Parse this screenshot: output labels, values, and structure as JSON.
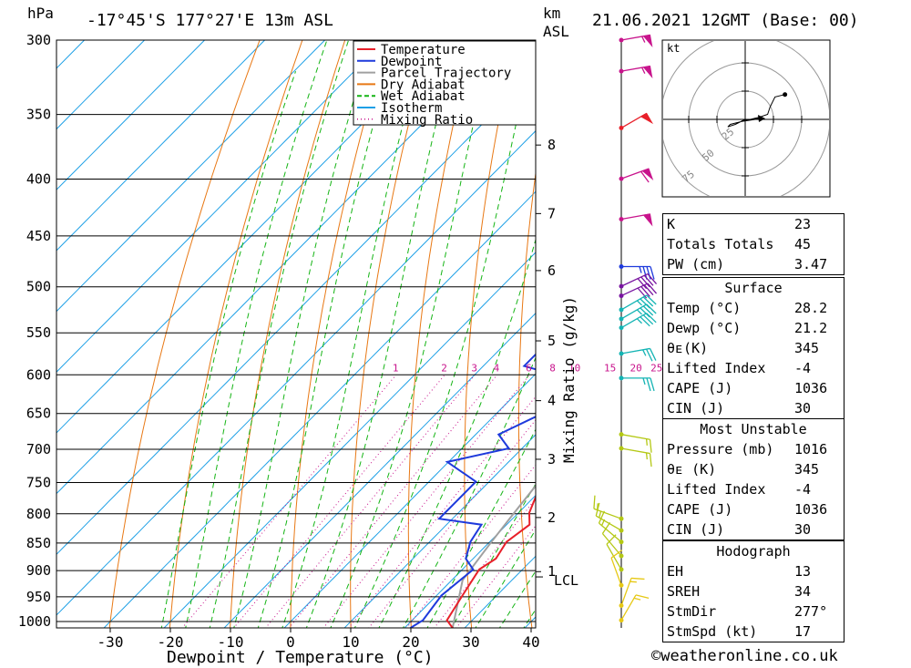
{
  "header": {
    "location": "-17°45'S 177°27'E 13m ASL",
    "datetime": "21.06.2021 12GMT (Base: 00)",
    "pressure_unit": "hPa",
    "height_unit_line1": "km",
    "height_unit_line2": "ASL"
  },
  "chart_data": {
    "type": "line",
    "xlabel": "Dewpoint / Temperature (°C)",
    "mixing_ratio_label": "Mixing Ratio (g/kg)",
    "x_ticks": [
      -30,
      -20,
      -10,
      0,
      10,
      20,
      30,
      40
    ],
    "xlim": [
      -40,
      40
    ],
    "pressure_levels": [
      300,
      350,
      400,
      450,
      500,
      550,
      600,
      650,
      700,
      750,
      800,
      850,
      900,
      950,
      1000
    ],
    "pressure_range": [
      300,
      1016
    ],
    "log_pressure_axis": true,
    "height_ticks_km": [
      {
        "km": "8",
        "p": 373
      },
      {
        "km": "7",
        "p": 430
      },
      {
        "km": "6",
        "p": 484
      },
      {
        "km": "5",
        "p": 560
      },
      {
        "km": "4",
        "p": 634
      },
      {
        "km": "3",
        "p": 716
      },
      {
        "km": "2",
        "p": 808
      },
      {
        "km": "1",
        "p": 904
      }
    ],
    "lcl": {
      "label": "LCL",
      "p": 914
    },
    "mixing_ratio_values": [
      "1",
      "2",
      "3",
      "4",
      "6",
      "8",
      "10",
      "15",
      "20",
      "25"
    ],
    "legend": [
      "Temperature",
      "Dewpoint",
      "Parcel Trajectory",
      "Dry Adiabat",
      "Wet Adiabat",
      "Isotherm",
      "Mixing Ratio"
    ],
    "legend_placement": "top-right of plot",
    "series": [
      {
        "name": "Temperature",
        "color": "#e8202a",
        "points": [
          [
            28.2,
            1016
          ],
          [
            26,
            1000
          ],
          [
            24.5,
            950
          ],
          [
            23,
            900
          ],
          [
            24,
            880
          ],
          [
            23,
            850
          ],
          [
            24,
            820
          ],
          [
            22,
            800
          ],
          [
            19,
            750
          ],
          [
            17,
            715
          ],
          [
            16,
            700
          ],
          [
            12,
            650
          ],
          [
            8,
            600
          ],
          [
            5,
            570
          ],
          [
            4,
            550
          ],
          [
            2,
            525
          ],
          [
            3,
            500
          ],
          [
            3,
            485
          ],
          [
            4,
            470
          ],
          [
            2,
            450
          ],
          [
            4,
            435
          ],
          [
            2,
            400
          ],
          [
            0,
            375
          ],
          [
            -1,
            355
          ],
          [
            -4,
            330
          ],
          [
            -8,
            300
          ]
        ]
      },
      {
        "name": "Dewpoint",
        "color": "#1e3adc",
        "points": [
          [
            21.2,
            1016
          ],
          [
            22,
            1000
          ],
          [
            21,
            950
          ],
          [
            22,
            900
          ],
          [
            19,
            880
          ],
          [
            17,
            850
          ],
          [
            16,
            820
          ],
          [
            8,
            810
          ],
          [
            8,
            750
          ],
          [
            0,
            720
          ],
          [
            8,
            700
          ],
          [
            4,
            680
          ],
          [
            8,
            650
          ],
          [
            5,
            630
          ],
          [
            3,
            600
          ],
          [
            -3,
            590
          ],
          [
            -3,
            550
          ],
          [
            6,
            545
          ],
          [
            5,
            520
          ],
          [
            -1,
            525
          ],
          [
            5,
            505
          ],
          [
            -2,
            500
          ],
          [
            -15,
            475
          ],
          [
            -11,
            440
          ],
          [
            -12,
            430
          ],
          [
            -15,
            400
          ],
          [
            -11,
            380
          ],
          [
            -10,
            360
          ],
          [
            -10,
            350
          ],
          [
            -9,
            300
          ]
        ]
      },
      {
        "name": "Parcel Trajectory",
        "color": "#a0a0a0",
        "points": [
          [
            28.2,
            1016
          ],
          [
            22,
            920
          ],
          [
            20.5,
            850
          ],
          [
            19.5,
            800
          ],
          [
            18.5,
            750
          ],
          [
            17,
            700
          ],
          [
            15,
            650
          ],
          [
            12.5,
            600
          ],
          [
            10,
            550
          ],
          [
            6.5,
            500
          ],
          [
            2,
            450
          ],
          [
            -4,
            400
          ],
          [
            -11,
            350
          ],
          [
            -20,
            300
          ]
        ]
      }
    ]
  },
  "wind_profile": {
    "barbs": [
      {
        "p": 300,
        "dir": 260,
        "spd": 55,
        "color": "#c8148c"
      },
      {
        "p": 320,
        "dir": 260,
        "spd": 55,
        "color": "#c8148c"
      },
      {
        "p": 360,
        "dir": 240,
        "spd": 50,
        "color": "#e8202a"
      },
      {
        "p": 400,
        "dir": 250,
        "spd": 60,
        "color": "#c8148c"
      },
      {
        "p": 435,
        "dir": 260,
        "spd": 50,
        "color": "#c8148c"
      },
      {
        "p": 480,
        "dir": 270,
        "spd": 35,
        "color": "#1e3adc"
      },
      {
        "p": 500,
        "dir": 245,
        "spd": 40,
        "color": "#7814a0"
      },
      {
        "p": 510,
        "dir": 245,
        "spd": 40,
        "color": "#7814a0"
      },
      {
        "p": 525,
        "dir": 240,
        "spd": 35,
        "color": "#14b4b4"
      },
      {
        "p": 535,
        "dir": 240,
        "spd": 35,
        "color": "#14b4b4"
      },
      {
        "p": 545,
        "dir": 240,
        "spd": 35,
        "color": "#14b4b4"
      },
      {
        "p": 575,
        "dir": 260,
        "spd": 25,
        "color": "#14b4b4"
      },
      {
        "p": 605,
        "dir": 270,
        "spd": 25,
        "color": "#14b4b4"
      },
      {
        "p": 680,
        "dir": 280,
        "spd": 15,
        "color": "#b4c814"
      },
      {
        "p": 700,
        "dir": 280,
        "spd": 15,
        "color": "#b4c814"
      },
      {
        "p": 810,
        "dir": 110,
        "spd": 15,
        "color": "#b4c814"
      },
      {
        "p": 830,
        "dir": 120,
        "spd": 15,
        "color": "#b4c814"
      },
      {
        "p": 850,
        "dir": 130,
        "spd": 15,
        "color": "#b4c814"
      },
      {
        "p": 875,
        "dir": 140,
        "spd": 10,
        "color": "#b4c814"
      },
      {
        "p": 900,
        "dir": 150,
        "spd": 10,
        "color": "#b4c814"
      },
      {
        "p": 930,
        "dir": 160,
        "spd": 10,
        "color": "#e6c814"
      },
      {
        "p": 970,
        "dir": 200,
        "spd": 15,
        "color": "#e6c814"
      },
      {
        "p": 1000,
        "dir": 210,
        "spd": 15,
        "color": "#e6c814"
      }
    ]
  },
  "hodograph": {
    "unit_label": "kt",
    "ring_labels": [
      "25",
      "50",
      "75"
    ],
    "trace_kt": [
      [
        0,
        0
      ],
      [
        -4,
        -2
      ],
      [
        -7,
        -3
      ],
      [
        -6,
        -2
      ],
      [
        -2,
        -1
      ],
      [
        6,
        1
      ],
      [
        9,
        2
      ],
      [
        10,
        5
      ],
      [
        12,
        9
      ],
      [
        16,
        10
      ]
    ]
  },
  "indices": {
    "general": [
      {
        "label": "K",
        "value": "23"
      },
      {
        "label": "Totals Totals",
        "value": "45"
      },
      {
        "label": "PW (cm)",
        "value": "3.47"
      }
    ],
    "surface": {
      "title": "Surface",
      "rows": [
        {
          "label": "Temp (°C)",
          "value": "28.2"
        },
        {
          "label": "Dewp (°C)",
          "value": "21.2"
        },
        {
          "label": "θᴇ(K)",
          "value": "345"
        },
        {
          "label": "Lifted Index",
          "value": "-4"
        },
        {
          "label": "CAPE (J)",
          "value": "1036"
        },
        {
          "label": "CIN (J)",
          "value": "30"
        }
      ]
    },
    "most_unstable": {
      "title": "Most Unstable",
      "rows": [
        {
          "label": "Pressure (mb)",
          "value": "1016"
        },
        {
          "label": "θᴇ (K)",
          "value": "345"
        },
        {
          "label": "Lifted Index",
          "value": "-4"
        },
        {
          "label": "CAPE (J)",
          "value": "1036"
        },
        {
          "label": "CIN (J)",
          "value": "30"
        }
      ]
    },
    "hodograph": {
      "title": "Hodograph",
      "rows": [
        {
          "label": "EH",
          "value": "13"
        },
        {
          "label": "SREH",
          "value": "34"
        },
        {
          "label": "StmDir",
          "value": "277°"
        },
        {
          "label": "StmSpd (kt)",
          "value": "17"
        }
      ]
    }
  },
  "footer": {
    "copyright": "©weatheronline.co.uk"
  },
  "colors": {
    "temperature": "#e8202a",
    "dewpoint": "#1e3adc",
    "parcel": "#a0a0a0",
    "dry_adiabat": "#e87814",
    "wet_adiabat": "#14b414",
    "isotherm": "#1ea0e6",
    "mixing_ratio": "#c8148c"
  }
}
